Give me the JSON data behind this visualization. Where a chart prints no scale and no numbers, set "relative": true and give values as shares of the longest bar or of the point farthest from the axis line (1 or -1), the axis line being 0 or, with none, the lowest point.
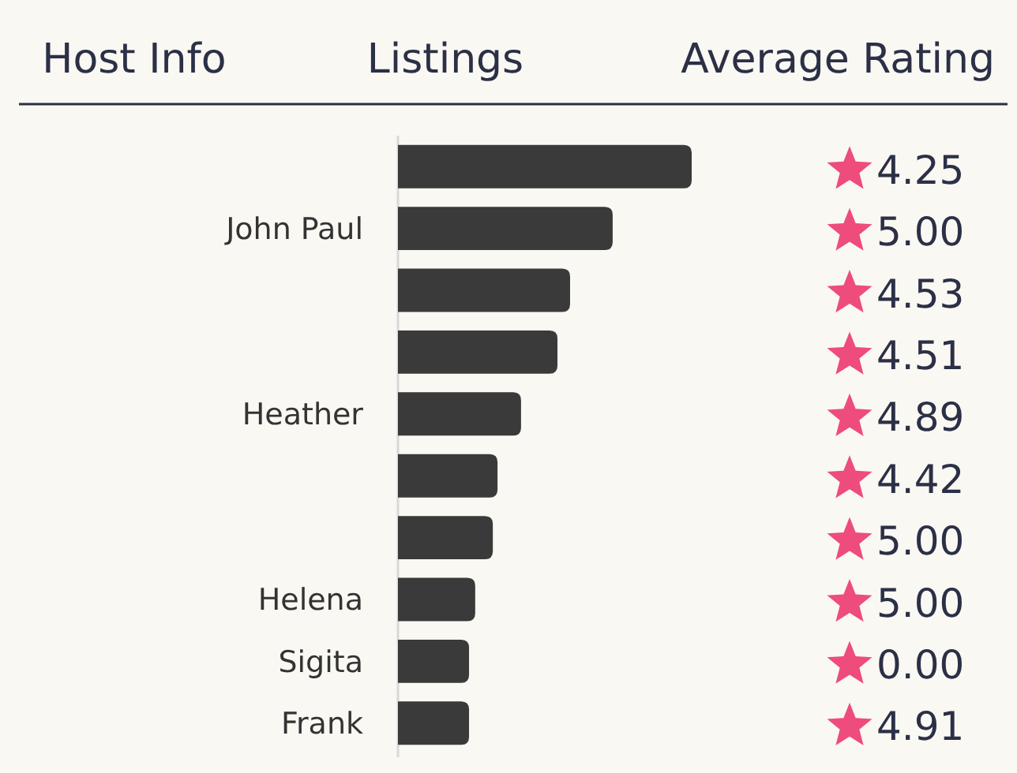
{
  "chart_data": {
    "type": "bar",
    "orientation": "horizontal",
    "relative": true,
    "ylabel": "Host Info",
    "xlabel": "Listings",
    "y2label": "Average Rating",
    "categories": [
      null,
      "John Paul",
      null,
      null,
      "Heather",
      null,
      null,
      "Helena",
      "Sigita",
      "Frank"
    ],
    "values": [
      1,
      0.731,
      0.586,
      0.543,
      0.419,
      0.339,
      0.323,
      0.263,
      0.242,
      0.242
    ],
    "color": "#3a3a3a",
    "annotations": [
      "4.25",
      "5.00",
      "4.53",
      "4.51",
      "4.89",
      "4.42",
      "5.00",
      "5.00",
      "0.00",
      "4.91"
    ]
  }
}
